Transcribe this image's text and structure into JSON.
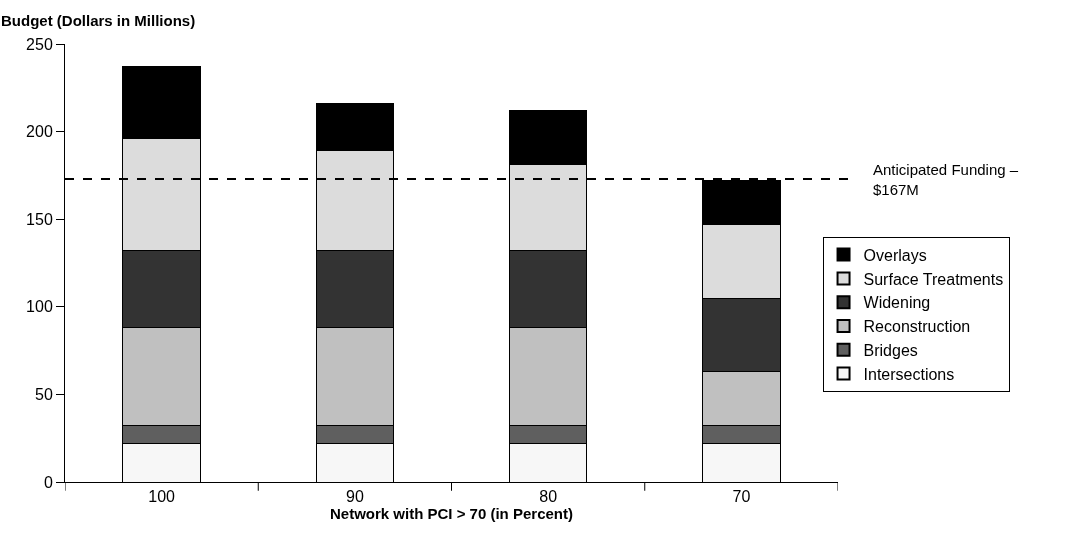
{
  "chart_data": {
    "type": "bar",
    "stacked": true,
    "ylabel": "Budget (Dollars in Millions)",
    "xlabel": "Network with PCI > 70 (in Percent)",
    "categories": [
      "100",
      "90",
      "80",
      "70"
    ],
    "series": [
      {
        "name": "Intersections",
        "color": "#f7f7f7",
        "values": [
          22,
          22,
          22,
          22
        ]
      },
      {
        "name": "Bridges",
        "color": "#5f5f5f",
        "values": [
          10,
          10,
          10,
          10
        ]
      },
      {
        "name": "Reconstruction",
        "color": "#c0c0c0",
        "values": [
          56,
          56,
          56,
          31
        ]
      },
      {
        "name": "Widening",
        "color": "#333333",
        "values": [
          44,
          44,
          44,
          42
        ]
      },
      {
        "name": "Surface Treatments",
        "color": "#dcdcdc",
        "values": [
          64,
          57,
          49,
          42
        ]
      },
      {
        "name": "Overlays",
        "color": "#000000",
        "values": [
          41,
          27,
          31,
          25
        ]
      }
    ],
    "ylim": [
      0,
      250
    ],
    "yticks": [
      0,
      50,
      100,
      150,
      200,
      250
    ],
    "ref_lines": [
      {
        "axis": "y",
        "value": 173,
        "label": "Anticipated Funding –\n$167M",
        "line_style": "dashed",
        "color": "#000000"
      }
    ],
    "legend": "right"
  }
}
